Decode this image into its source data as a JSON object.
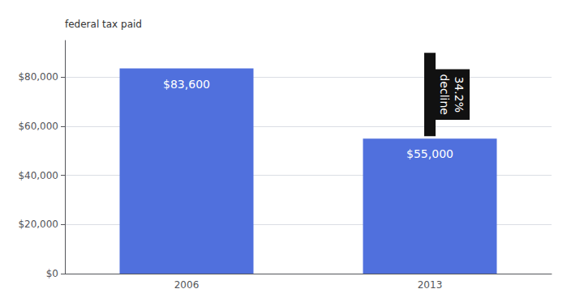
{
  "chart_data": {
    "type": "bar",
    "ylabel": "federal tax paid",
    "categories": [
      "2006",
      "2013"
    ],
    "values": [
      83600,
      55000
    ],
    "value_labels": [
      "$83,600",
      "$55,000"
    ],
    "data_labels": true,
    "ylim": [
      0,
      95000
    ],
    "yticks": [
      {
        "value": 0,
        "label": "$0"
      },
      {
        "value": 20000,
        "label": "$20,000"
      },
      {
        "value": 40000,
        "label": "$40,000"
      },
      {
        "value": 60000,
        "label": "$60,000"
      },
      {
        "value": 80000,
        "label": "$80,000"
      }
    ],
    "grid": true,
    "annotation": {
      "lines": [
        "34.2%",
        "decline"
      ],
      "category": "2013",
      "y_from": 90000,
      "y_to": 56000,
      "color": "#111111"
    }
  }
}
